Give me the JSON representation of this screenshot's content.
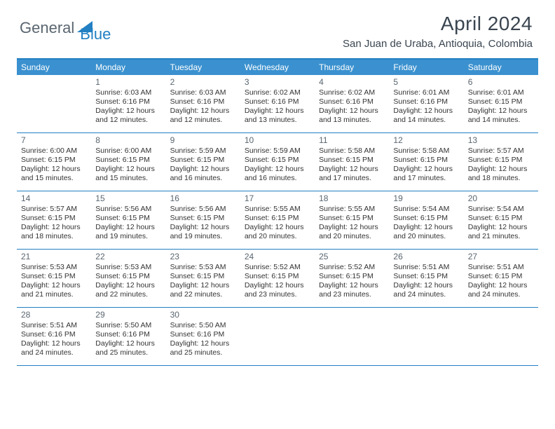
{
  "logo": {
    "text1": "General",
    "text2": "Blue"
  },
  "colors": {
    "brand": "#2380c3",
    "header_bg": "#3b91cf",
    "text_dark": "#3a4550",
    "text_gray": "#5a6670",
    "body_text": "#333333",
    "page_bg": "#ffffff"
  },
  "title": "April 2024",
  "location": "San Juan de Uraba, Antioquia, Colombia",
  "weekdays": [
    "Sunday",
    "Monday",
    "Tuesday",
    "Wednesday",
    "Thursday",
    "Friday",
    "Saturday"
  ],
  "weeks": [
    [
      {
        "n": "",
        "sr": "",
        "ss": "",
        "dl1": "",
        "dl2": ""
      },
      {
        "n": "1",
        "sr": "Sunrise: 6:03 AM",
        "ss": "Sunset: 6:16 PM",
        "dl1": "Daylight: 12 hours",
        "dl2": "and 12 minutes."
      },
      {
        "n": "2",
        "sr": "Sunrise: 6:03 AM",
        "ss": "Sunset: 6:16 PM",
        "dl1": "Daylight: 12 hours",
        "dl2": "and 12 minutes."
      },
      {
        "n": "3",
        "sr": "Sunrise: 6:02 AM",
        "ss": "Sunset: 6:16 PM",
        "dl1": "Daylight: 12 hours",
        "dl2": "and 13 minutes."
      },
      {
        "n": "4",
        "sr": "Sunrise: 6:02 AM",
        "ss": "Sunset: 6:16 PM",
        "dl1": "Daylight: 12 hours",
        "dl2": "and 13 minutes."
      },
      {
        "n": "5",
        "sr": "Sunrise: 6:01 AM",
        "ss": "Sunset: 6:16 PM",
        "dl1": "Daylight: 12 hours",
        "dl2": "and 14 minutes."
      },
      {
        "n": "6",
        "sr": "Sunrise: 6:01 AM",
        "ss": "Sunset: 6:15 PM",
        "dl1": "Daylight: 12 hours",
        "dl2": "and 14 minutes."
      }
    ],
    [
      {
        "n": "7",
        "sr": "Sunrise: 6:00 AM",
        "ss": "Sunset: 6:15 PM",
        "dl1": "Daylight: 12 hours",
        "dl2": "and 15 minutes."
      },
      {
        "n": "8",
        "sr": "Sunrise: 6:00 AM",
        "ss": "Sunset: 6:15 PM",
        "dl1": "Daylight: 12 hours",
        "dl2": "and 15 minutes."
      },
      {
        "n": "9",
        "sr": "Sunrise: 5:59 AM",
        "ss": "Sunset: 6:15 PM",
        "dl1": "Daylight: 12 hours",
        "dl2": "and 16 minutes."
      },
      {
        "n": "10",
        "sr": "Sunrise: 5:59 AM",
        "ss": "Sunset: 6:15 PM",
        "dl1": "Daylight: 12 hours",
        "dl2": "and 16 minutes."
      },
      {
        "n": "11",
        "sr": "Sunrise: 5:58 AM",
        "ss": "Sunset: 6:15 PM",
        "dl1": "Daylight: 12 hours",
        "dl2": "and 17 minutes."
      },
      {
        "n": "12",
        "sr": "Sunrise: 5:58 AM",
        "ss": "Sunset: 6:15 PM",
        "dl1": "Daylight: 12 hours",
        "dl2": "and 17 minutes."
      },
      {
        "n": "13",
        "sr": "Sunrise: 5:57 AM",
        "ss": "Sunset: 6:15 PM",
        "dl1": "Daylight: 12 hours",
        "dl2": "and 18 minutes."
      }
    ],
    [
      {
        "n": "14",
        "sr": "Sunrise: 5:57 AM",
        "ss": "Sunset: 6:15 PM",
        "dl1": "Daylight: 12 hours",
        "dl2": "and 18 minutes."
      },
      {
        "n": "15",
        "sr": "Sunrise: 5:56 AM",
        "ss": "Sunset: 6:15 PM",
        "dl1": "Daylight: 12 hours",
        "dl2": "and 19 minutes."
      },
      {
        "n": "16",
        "sr": "Sunrise: 5:56 AM",
        "ss": "Sunset: 6:15 PM",
        "dl1": "Daylight: 12 hours",
        "dl2": "and 19 minutes."
      },
      {
        "n": "17",
        "sr": "Sunrise: 5:55 AM",
        "ss": "Sunset: 6:15 PM",
        "dl1": "Daylight: 12 hours",
        "dl2": "and 20 minutes."
      },
      {
        "n": "18",
        "sr": "Sunrise: 5:55 AM",
        "ss": "Sunset: 6:15 PM",
        "dl1": "Daylight: 12 hours",
        "dl2": "and 20 minutes."
      },
      {
        "n": "19",
        "sr": "Sunrise: 5:54 AM",
        "ss": "Sunset: 6:15 PM",
        "dl1": "Daylight: 12 hours",
        "dl2": "and 20 minutes."
      },
      {
        "n": "20",
        "sr": "Sunrise: 5:54 AM",
        "ss": "Sunset: 6:15 PM",
        "dl1": "Daylight: 12 hours",
        "dl2": "and 21 minutes."
      }
    ],
    [
      {
        "n": "21",
        "sr": "Sunrise: 5:53 AM",
        "ss": "Sunset: 6:15 PM",
        "dl1": "Daylight: 12 hours",
        "dl2": "and 21 minutes."
      },
      {
        "n": "22",
        "sr": "Sunrise: 5:53 AM",
        "ss": "Sunset: 6:15 PM",
        "dl1": "Daylight: 12 hours",
        "dl2": "and 22 minutes."
      },
      {
        "n": "23",
        "sr": "Sunrise: 5:53 AM",
        "ss": "Sunset: 6:15 PM",
        "dl1": "Daylight: 12 hours",
        "dl2": "and 22 minutes."
      },
      {
        "n": "24",
        "sr": "Sunrise: 5:52 AM",
        "ss": "Sunset: 6:15 PM",
        "dl1": "Daylight: 12 hours",
        "dl2": "and 23 minutes."
      },
      {
        "n": "25",
        "sr": "Sunrise: 5:52 AM",
        "ss": "Sunset: 6:15 PM",
        "dl1": "Daylight: 12 hours",
        "dl2": "and 23 minutes."
      },
      {
        "n": "26",
        "sr": "Sunrise: 5:51 AM",
        "ss": "Sunset: 6:15 PM",
        "dl1": "Daylight: 12 hours",
        "dl2": "and 24 minutes."
      },
      {
        "n": "27",
        "sr": "Sunrise: 5:51 AM",
        "ss": "Sunset: 6:15 PM",
        "dl1": "Daylight: 12 hours",
        "dl2": "and 24 minutes."
      }
    ],
    [
      {
        "n": "28",
        "sr": "Sunrise: 5:51 AM",
        "ss": "Sunset: 6:16 PM",
        "dl1": "Daylight: 12 hours",
        "dl2": "and 24 minutes."
      },
      {
        "n": "29",
        "sr": "Sunrise: 5:50 AM",
        "ss": "Sunset: 6:16 PM",
        "dl1": "Daylight: 12 hours",
        "dl2": "and 25 minutes."
      },
      {
        "n": "30",
        "sr": "Sunrise: 5:50 AM",
        "ss": "Sunset: 6:16 PM",
        "dl1": "Daylight: 12 hours",
        "dl2": "and 25 minutes."
      },
      {
        "n": "",
        "sr": "",
        "ss": "",
        "dl1": "",
        "dl2": ""
      },
      {
        "n": "",
        "sr": "",
        "ss": "",
        "dl1": "",
        "dl2": ""
      },
      {
        "n": "",
        "sr": "",
        "ss": "",
        "dl1": "",
        "dl2": ""
      },
      {
        "n": "",
        "sr": "",
        "ss": "",
        "dl1": "",
        "dl2": ""
      }
    ]
  ]
}
